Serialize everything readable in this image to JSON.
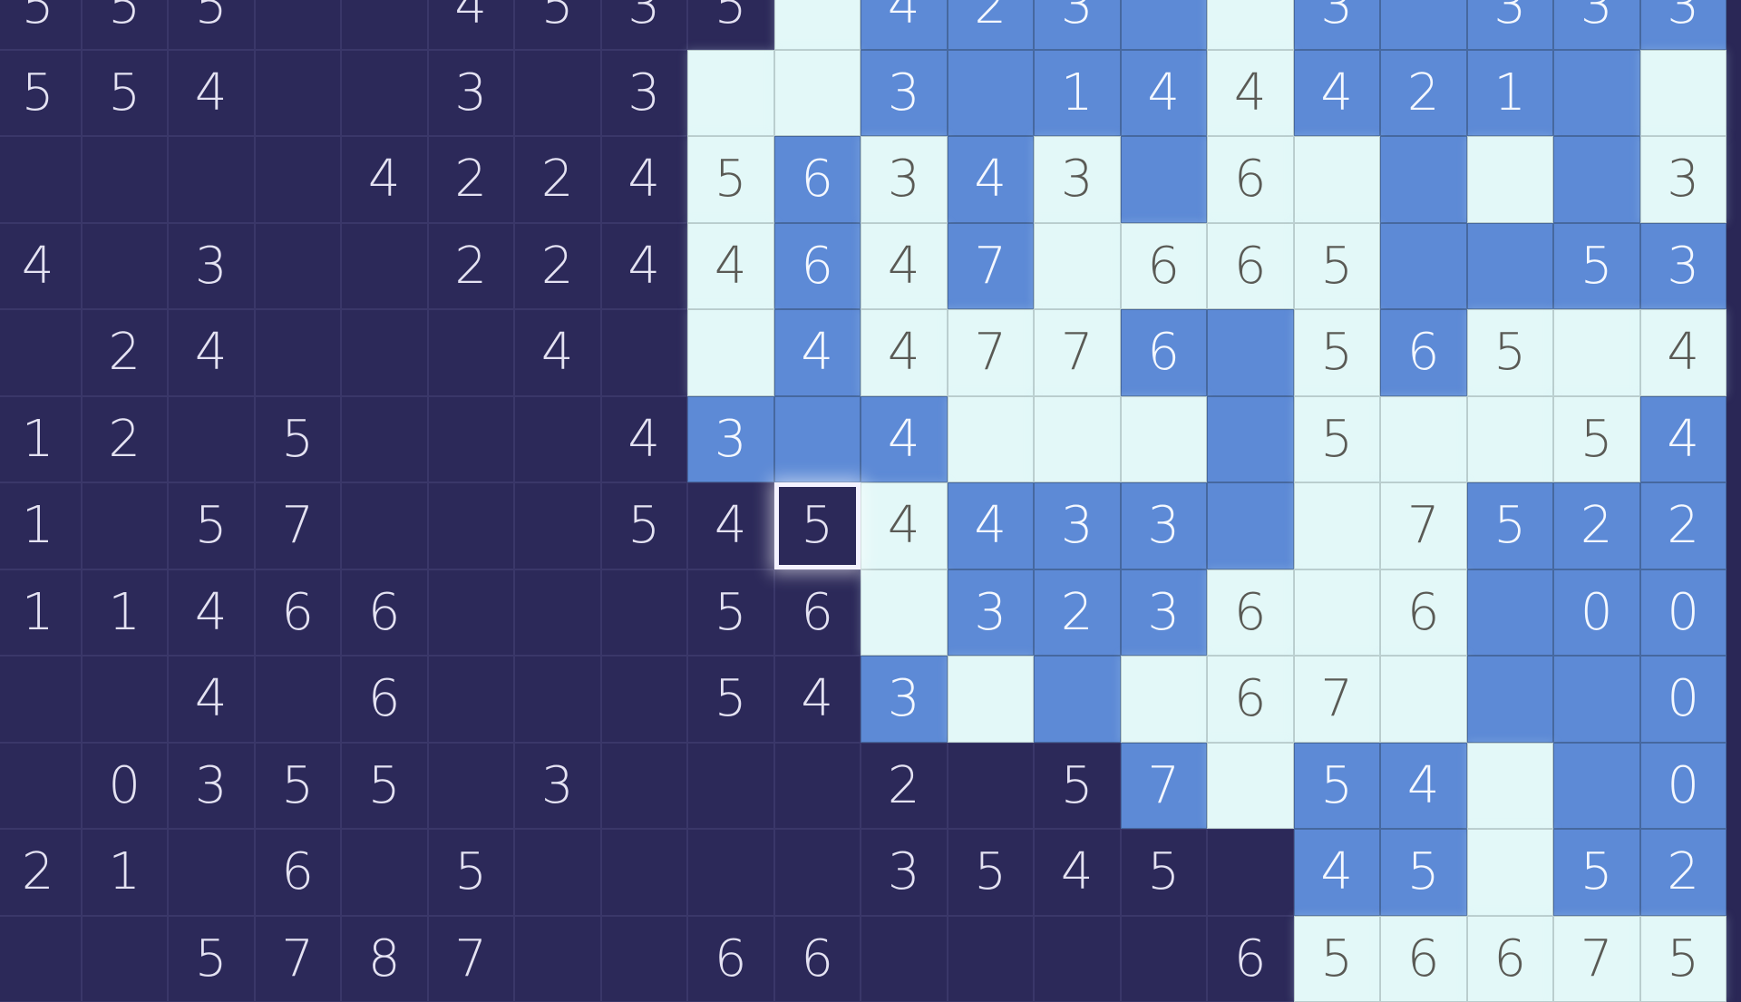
{
  "colors": {
    "unrevealed": "#2c2959",
    "filled": "#5d8ad6",
    "empty": "#e3f8f8",
    "selection": "#f4f2ff"
  },
  "selected": {
    "row": 6,
    "col": 9
  },
  "grid": {
    "rows": [
      {
        "numbers": [
          "5",
          "5",
          "5",
          "",
          "",
          "4",
          "5",
          "3",
          "5",
          "",
          "4",
          "2",
          "3",
          "",
          "",
          "3",
          "",
          "3",
          "3",
          "3"
        ],
        "states": "DDDDDDDDDLBBBBLBBBBB"
      },
      {
        "numbers": [
          "5",
          "5",
          "4",
          "",
          "",
          "3",
          "",
          "3",
          "",
          "",
          "3",
          "",
          "1",
          "4",
          "4",
          "4",
          "2",
          "1",
          "",
          ""
        ],
        "states": "DDDDDDDDLLBBBBLBBBBL"
      },
      {
        "numbers": [
          "",
          "",
          "",
          "",
          "4",
          "2",
          "2",
          "4",
          "5",
          "6",
          "3",
          "4",
          "3",
          "",
          "6",
          "",
          "",
          "",
          "",
          "3"
        ],
        "states": "DDDDDDDDLBLBLBLLBLBL"
      },
      {
        "numbers": [
          "4",
          "",
          "3",
          "",
          "",
          "2",
          "2",
          "4",
          "4",
          "6",
          "4",
          "7",
          "",
          "6",
          "6",
          "5",
          "",
          "",
          "5",
          "3"
        ],
        "states": "DDDDDDDDLBLBLLLLBBBB"
      },
      {
        "numbers": [
          "",
          "2",
          "4",
          "",
          "",
          "",
          "4",
          "",
          "",
          "4",
          "4",
          "7",
          "7",
          "6",
          "",
          "5",
          "6",
          "5",
          "",
          "4"
        ],
        "states": "DDDDDDDDLBLLLBBLBLLL"
      },
      {
        "numbers": [
          "1",
          "2",
          "",
          "5",
          "",
          "",
          "",
          "4",
          "3",
          "",
          "4",
          "",
          "",
          "",
          "",
          "5",
          "",
          "",
          "5",
          "4"
        ],
        "states": "DDDDDDDDBBBLLLBLLLLB"
      },
      {
        "numbers": [
          "1",
          "",
          "5",
          "7",
          "",
          "",
          "",
          "5",
          "4",
          "5",
          "4",
          "4",
          "3",
          "3",
          "",
          "",
          "7",
          "5",
          "2",
          "2"
        ],
        "states": "DDDDDDDDDDLBBBBLLBBB"
      },
      {
        "numbers": [
          "1",
          "1",
          "4",
          "6",
          "6",
          "",
          "",
          "",
          "5",
          "6",
          "",
          "3",
          "2",
          "3",
          "6",
          "",
          "6",
          "",
          "0",
          "0"
        ],
        "states": "DDDDDDDDDDLBBBLLLBBB"
      },
      {
        "numbers": [
          "",
          "",
          "4",
          "",
          "6",
          "",
          "",
          "",
          "5",
          "4",
          "3",
          "",
          "",
          "",
          "6",
          "7",
          "",
          "",
          "",
          "0"
        ],
        "states": "DDDDDDDDDDBLBLLLLBBB"
      },
      {
        "numbers": [
          "",
          "0",
          "3",
          "5",
          "5",
          "",
          "3",
          "",
          "",
          "",
          "2",
          "",
          "5",
          "7",
          "",
          "5",
          "4",
          "",
          "",
          "0"
        ],
        "states": "DDDDDDDDDDDDDBLBBLBB"
      },
      {
        "numbers": [
          "2",
          "1",
          "",
          "6",
          "",
          "5",
          "",
          "",
          "",
          "",
          "3",
          "5",
          "4",
          "5",
          "",
          "4",
          "5",
          "",
          "5",
          "2"
        ],
        "states": "DDDDDDDDDDDDDDDBBLBB"
      },
      {
        "numbers": [
          "",
          "",
          "5",
          "7",
          "8",
          "7",
          "",
          "",
          "6",
          "6",
          "",
          "",
          "",
          "",
          "6",
          "5",
          "6",
          "6",
          "7",
          "5"
        ],
        "states": "DDDDDDDDDDDDDDDLLLLL"
      }
    ]
  }
}
